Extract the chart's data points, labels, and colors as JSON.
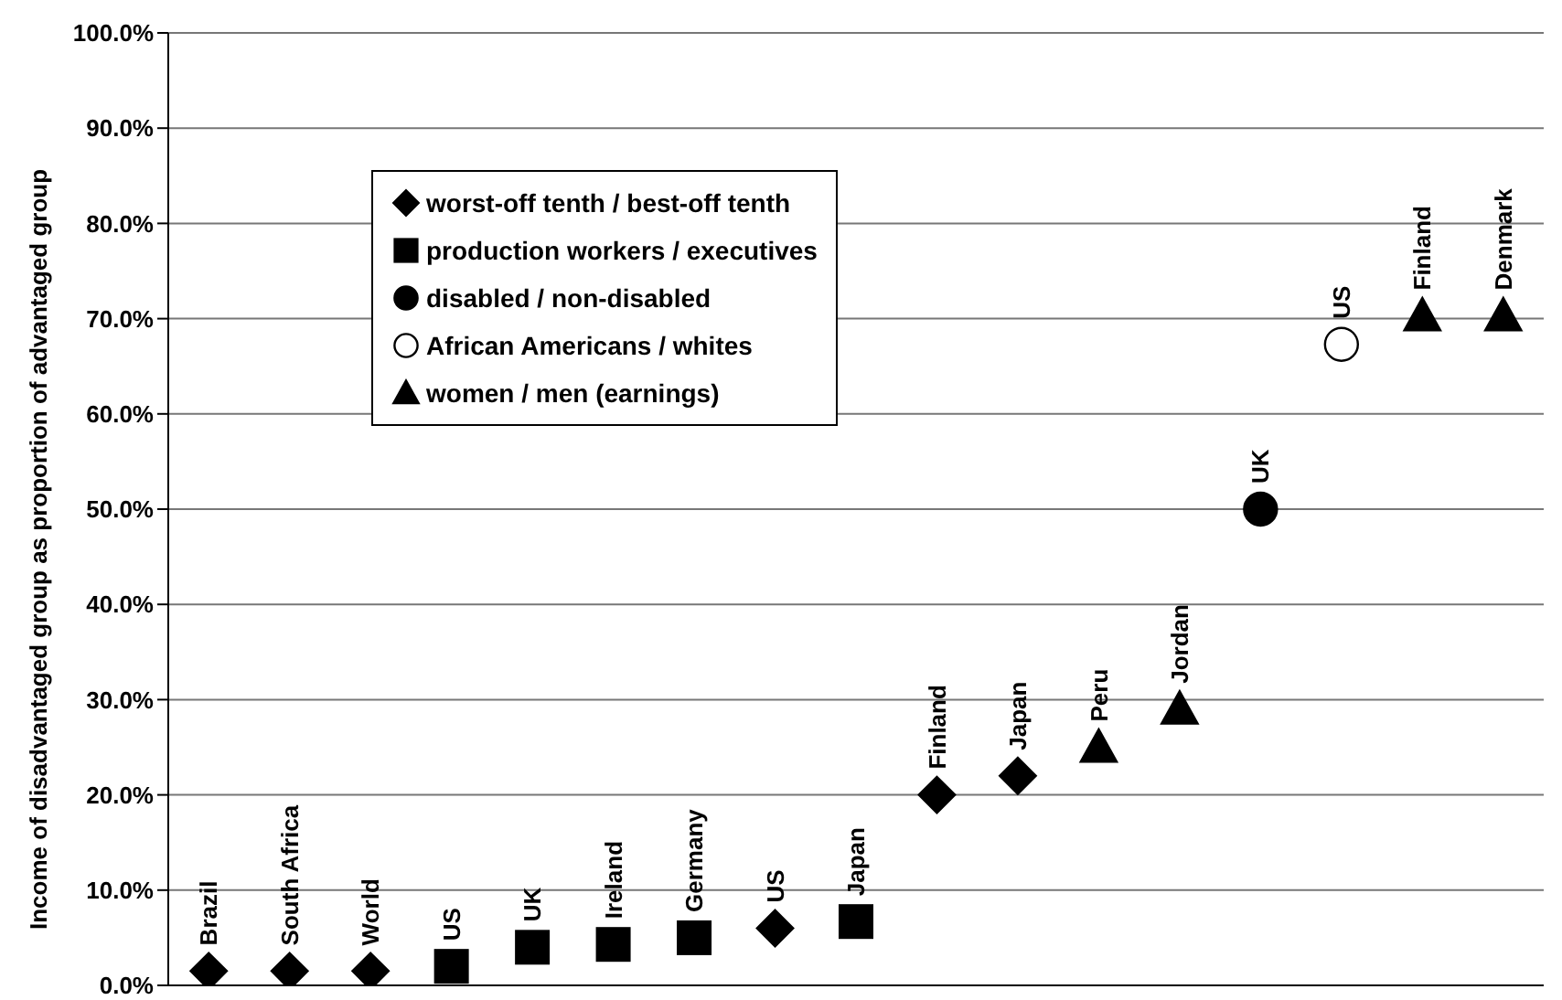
{
  "chart_data": {
    "type": "scatter",
    "ylabel": "Income of disadvantaged group as proportion of advantaged group",
    "categories": [
      null,
      null,
      null,
      null,
      null,
      null,
      null,
      null,
      null,
      null,
      null,
      null,
      null,
      null,
      null,
      null,
      null
    ],
    "series": [
      {
        "name": "worst-off tenth / best-off tenth",
        "color": "#000000",
        "marker": "diamond",
        "values": [
          1.5,
          1.5,
          1.5,
          null,
          null,
          null,
          null,
          6,
          null,
          20,
          22,
          null,
          null,
          null,
          null,
          null,
          null
        ],
        "value_labels": [
          "Brazil",
          "South Africa",
          "World",
          null,
          null,
          null,
          null,
          "US",
          null,
          "Finland",
          "Japan",
          null,
          null,
          null,
          null,
          null,
          null
        ]
      },
      {
        "name": "production workers / executives",
        "color": "#000000",
        "marker": "square",
        "values": [
          null,
          null,
          null,
          2,
          4,
          4.3,
          5,
          null,
          6.7,
          null,
          null,
          null,
          null,
          null,
          null,
          null,
          null
        ],
        "value_labels": [
          null,
          null,
          null,
          "US",
          "UK",
          "Ireland",
          "Germany",
          null,
          "Japan",
          null,
          null,
          null,
          null,
          null,
          null,
          null,
          null
        ]
      },
      {
        "name": "disabled / non-disabled",
        "color": "#000000",
        "marker": "circle",
        "values": [
          null,
          null,
          null,
          null,
          null,
          null,
          null,
          null,
          null,
          null,
          null,
          null,
          null,
          50,
          null,
          null,
          null
        ],
        "value_labels": [
          null,
          null,
          null,
          null,
          null,
          null,
          null,
          null,
          null,
          null,
          null,
          null,
          null,
          "UK",
          null,
          null,
          null
        ]
      },
      {
        "name": "African Americans / whites",
        "color": "#ffffff",
        "marker": "circle",
        "values": [
          null,
          null,
          null,
          null,
          null,
          null,
          null,
          null,
          null,
          null,
          null,
          null,
          null,
          null,
          67.3,
          null,
          null
        ],
        "value_labels": [
          null,
          null,
          null,
          null,
          null,
          null,
          null,
          null,
          null,
          null,
          null,
          null,
          null,
          null,
          "US",
          null,
          null
        ]
      },
      {
        "name": "women / men (earnings)",
        "color": "#000000",
        "marker": "triangle",
        "values": [
          null,
          null,
          null,
          null,
          null,
          null,
          null,
          null,
          null,
          null,
          null,
          25,
          29,
          null,
          null,
          70.3,
          70.3
        ],
        "value_labels": [
          null,
          null,
          null,
          null,
          null,
          null,
          null,
          null,
          null,
          null,
          null,
          "Peru",
          "Jordan",
          null,
          null,
          "Finland",
          "Denmark"
        ]
      }
    ],
    "ylim": [
      0,
      100
    ],
    "yticks": [
      {
        "value": 0,
        "label": "0.0%"
      },
      {
        "value": 10,
        "label": "10.0%"
      },
      {
        "value": 20,
        "label": "20.0%"
      },
      {
        "value": 30,
        "label": "30.0%"
      },
      {
        "value": 40,
        "label": "40.0%"
      },
      {
        "value": 50,
        "label": "50.0%"
      },
      {
        "value": 60,
        "label": "60.0%"
      },
      {
        "value": 70,
        "label": "70.0%"
      },
      {
        "value": 80,
        "label": "80.0%"
      },
      {
        "value": 90,
        "label": "90.0%"
      },
      {
        "value": 100,
        "label": "100.0%"
      }
    ],
    "grid": "y",
    "legend": "top left",
    "tick_labels": "y"
  }
}
